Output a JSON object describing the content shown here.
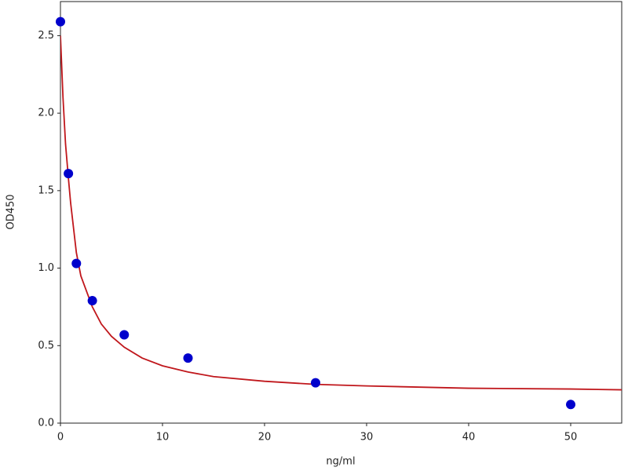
{
  "chart_data": {
    "type": "scatter",
    "xlabel": "ng/ml",
    "ylabel": "OD450",
    "xlim": [
      0,
      55
    ],
    "ylim": [
      0,
      2.72
    ],
    "xticks": [
      0,
      10,
      20,
      30,
      40,
      50
    ],
    "yticks": [
      {
        "value": 0,
        "label": "0.0"
      },
      0.5,
      {
        "value": 1,
        "label": "1.0"
      },
      1.5,
      {
        "value": 2,
        "label": "2.0"
      },
      2.5
    ],
    "grid": true,
    "series": [
      {
        "type": "line",
        "color": "#c0171c",
        "x": [
          0,
          0.25,
          0.5,
          0.78,
          1,
          1.56,
          2,
          3.125,
          4,
          5,
          6.25,
          8,
          10,
          12.5,
          15,
          20,
          25,
          30,
          40,
          50,
          55
        ],
        "values": [
          2.5,
          2.1,
          1.8,
          1.58,
          1.42,
          1.1,
          0.95,
          0.75,
          0.64,
          0.56,
          0.49,
          0.42,
          0.37,
          0.33,
          0.3,
          0.27,
          0.25,
          0.24,
          0.225,
          0.22,
          0.215
        ]
      },
      {
        "type": "scatter",
        "color": "#0000cc",
        "x": [
          0,
          0.78,
          1.56,
          3.125,
          6.25,
          12.5,
          25,
          50
        ],
        "values": [
          2.59,
          1.61,
          1.03,
          0.79,
          0.57,
          0.42,
          0.26,
          0.12
        ]
      }
    ]
  }
}
